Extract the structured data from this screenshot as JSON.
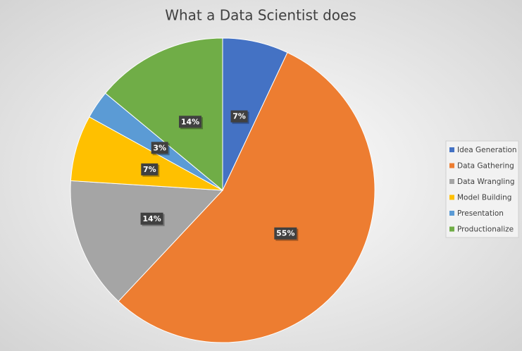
{
  "chart_data": {
    "type": "pie",
    "title": "What a Data Scientist does",
    "categories": [
      "Idea Generation",
      "Data Gathering",
      "Data Wrangling",
      "Model Building",
      "Presentation",
      "Productionalize"
    ],
    "values": [
      7,
      55,
      14,
      7,
      3,
      14
    ],
    "value_labels": [
      "7%",
      "55%",
      "14%",
      "7%",
      "3%",
      "14%"
    ],
    "colors": [
      "#4472c4",
      "#ed7d31",
      "#a5a5a5",
      "#ffc000",
      "#5b9bd5",
      "#70ad47"
    ],
    "legend": "right"
  }
}
